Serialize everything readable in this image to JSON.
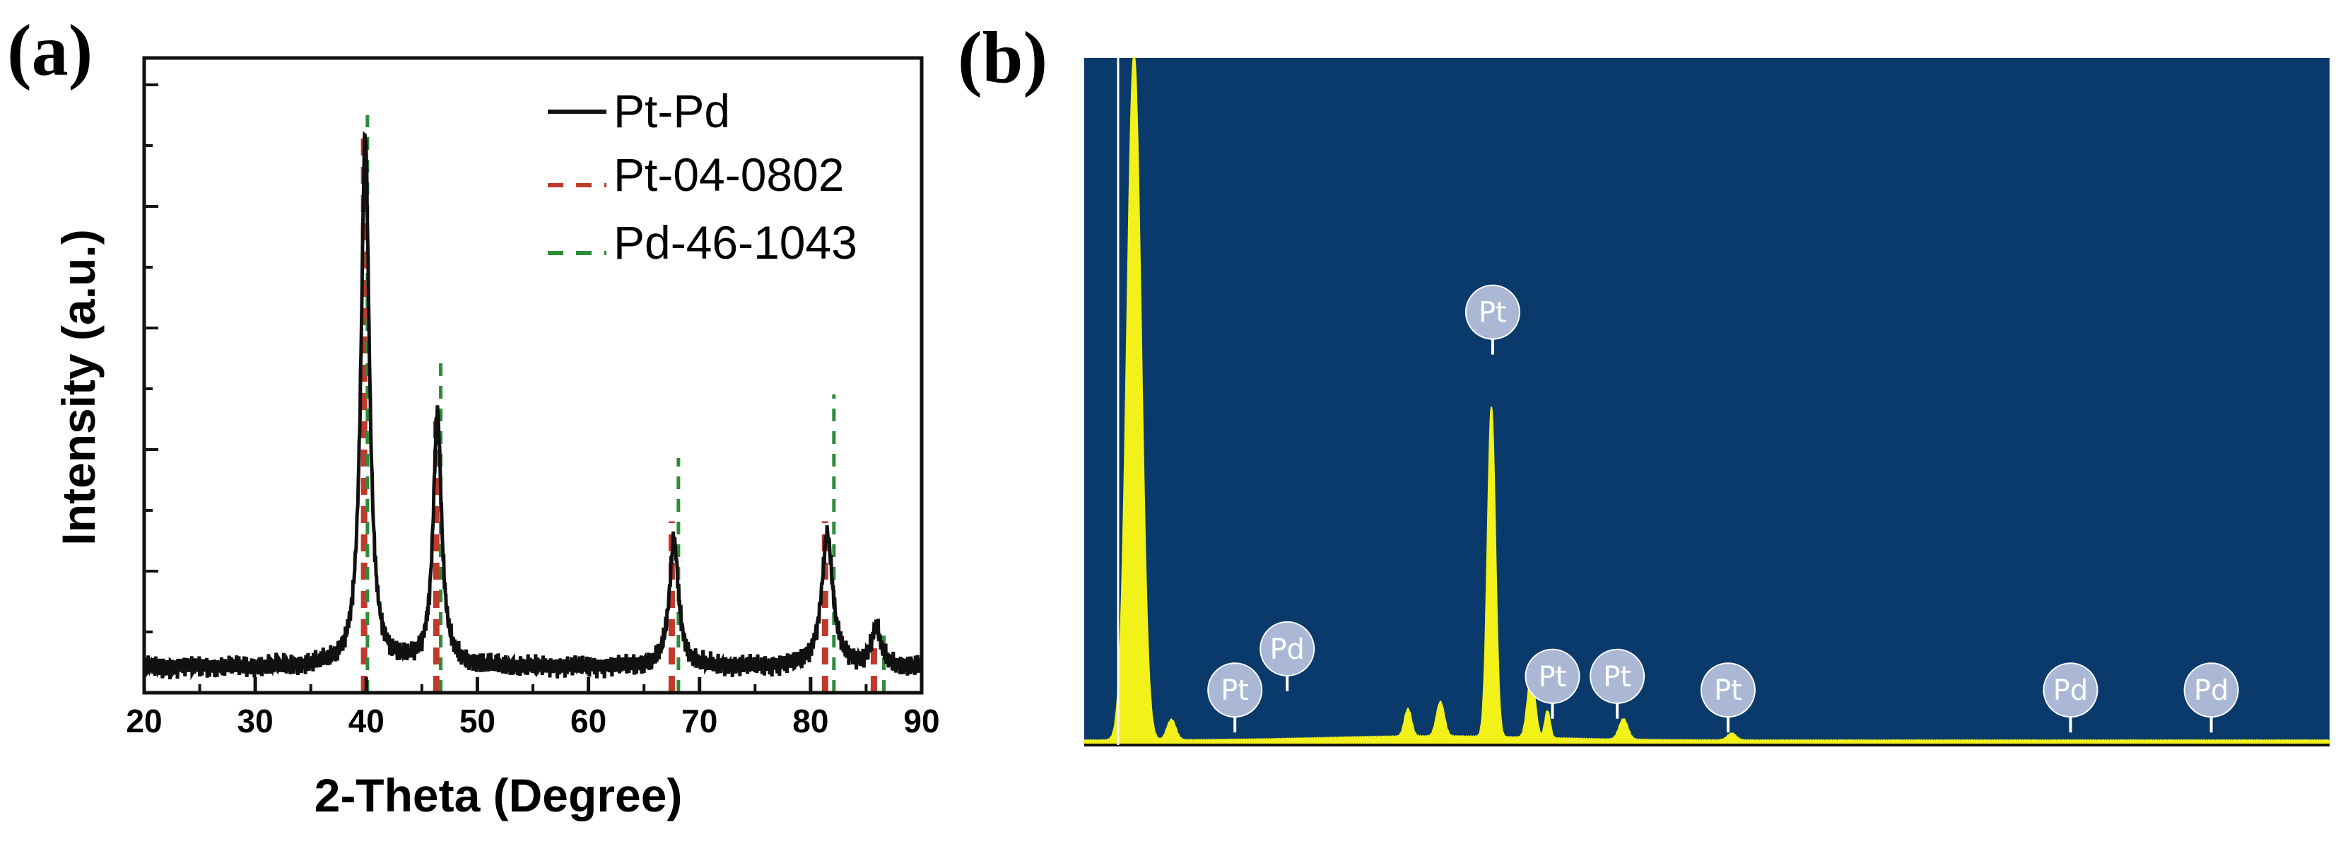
{
  "panels": {
    "a_label": "(a)",
    "b_label": "(b)"
  },
  "colors": {
    "pt_pd_line": "#111111",
    "pt_ref": "#c0392b",
    "pd_ref": "#2e8b3a",
    "pt_ref_marker": "#a0522d",
    "edx_background": "#0a3a6b",
    "edx_spectrum": "#f2f21a",
    "edx_tag_fill": "#aab8d6"
  },
  "chart_data": [
    {
      "type": "line",
      "panel": "(a)",
      "title": "",
      "xlabel": "2-Theta (Degree)",
      "ylabel": "Intensity (a.u.)",
      "xlim": [
        20,
        90
      ],
      "ylim": [
        0,
        100
      ],
      "xticks": [
        20,
        30,
        40,
        50,
        60,
        70,
        80,
        90
      ],
      "y_tick_labels_shown": false,
      "legend": {
        "placement": "top-right",
        "entries": [
          {
            "label": "Pt-Pd",
            "style": "solid",
            "color": "#111111"
          },
          {
            "label": "Pt-04-0802",
            "style": "dashed",
            "color": "#c0392b"
          },
          {
            "label": "Pd-46-1043",
            "style": "dashed",
            "color": "#2e8b3a"
          }
        ]
      },
      "series": [
        {
          "name": "Pt-Pd",
          "baseline": 4,
          "peaks": [
            {
              "two_theta": 39.9,
              "height": 84,
              "width": 0.45
            },
            {
              "two_theta": 46.4,
              "height": 40,
              "width": 0.45
            },
            {
              "two_theta": 67.7,
              "height": 20,
              "width": 0.5
            },
            {
              "two_theta": 81.5,
              "height": 21,
              "width": 0.6
            },
            {
              "two_theta": 85.9,
              "height": 6,
              "width": 0.5
            }
          ]
        }
      ],
      "reference_lines": [
        {
          "name": "Pt-04-0802",
          "positions": [
            39.8,
            46.3,
            67.5,
            81.3,
            85.7
          ],
          "heights": [
            89,
            43,
            27,
            27,
            7
          ]
        },
        {
          "name": "Pd-46-1043",
          "positions": [
            40.1,
            46.7,
            68.1,
            82.1,
            86.6
          ],
          "heights": [
            91,
            52,
            37,
            47,
            9
          ]
        }
      ]
    },
    {
      "type": "area",
      "panel": "(b)",
      "title": "",
      "xlabel": "",
      "ylabel": "",
      "xlim": [
        0,
        100
      ],
      "ylim": [
        0,
        100
      ],
      "notes": "EDX spectrum without axes; element markers labelled Pt and Pd",
      "peaks": [
        {
          "x": 4,
          "height": 100,
          "width": 0.8
        },
        {
          "x": 7,
          "height": 3,
          "width": 0.5
        },
        {
          "x": 26,
          "height": 4,
          "width": 0.4
        },
        {
          "x": 28.6,
          "height": 5,
          "width": 0.45
        },
        {
          "x": 32.7,
          "height": 48,
          "width": 0.45
        },
        {
          "x": 35.9,
          "height": 9,
          "width": 0.45
        },
        {
          "x": 37.2,
          "height": 4,
          "width": 0.3
        },
        {
          "x": 43.3,
          "height": 3,
          "width": 0.5
        },
        {
          "x": 52,
          "height": 1,
          "width": 0.5
        }
      ],
      "element_markers": [
        {
          "label": "Pt",
          "x": 12.1,
          "y": 8
        },
        {
          "label": "Pd",
          "x": 16.3,
          "y": 14
        },
        {
          "label": "Pt",
          "x": 32.8,
          "y": 63
        },
        {
          "label": "Pt",
          "x": 37.6,
          "y": 10
        },
        {
          "label": "Pt",
          "x": 42.8,
          "y": 10
        },
        {
          "label": "Pt",
          "x": 51.7,
          "y": 8
        },
        {
          "label": "Pd",
          "x": 79.2,
          "y": 8
        },
        {
          "label": "Pd",
          "x": 90.5,
          "y": 8
        }
      ]
    }
  ]
}
